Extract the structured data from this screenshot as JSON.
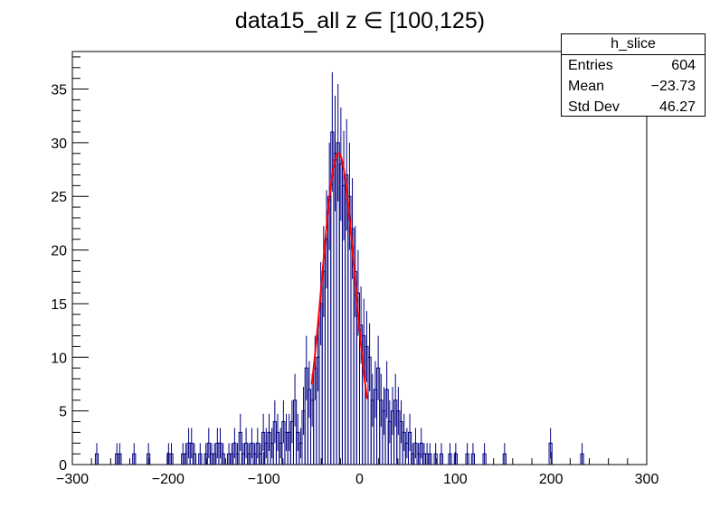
{
  "chart_data": {
    "type": "histogram",
    "title": "data15_all z  ∈ [100,125)",
    "xlabel": "",
    "ylabel": "",
    "xlim": [
      -300,
      300
    ],
    "ylim": [
      0,
      38.5
    ],
    "xticks": [
      -300,
      -200,
      -100,
      0,
      100,
      200,
      300
    ],
    "yticks": [
      0,
      5,
      10,
      15,
      20,
      25,
      30,
      35
    ],
    "bin_width": 3,
    "bins": [
      [
        -276,
        1
      ],
      [
        -255,
        1
      ],
      [
        -252,
        1
      ],
      [
        -237,
        1
      ],
      [
        -222,
        1
      ],
      [
        -201,
        1
      ],
      [
        -198,
        1
      ],
      [
        -186,
        1
      ],
      [
        -183,
        1
      ],
      [
        -180,
        2
      ],
      [
        -177,
        2
      ],
      [
        -174,
        1
      ],
      [
        -168,
        1
      ],
      [
        -162,
        1
      ],
      [
        -159,
        2
      ],
      [
        -156,
        1
      ],
      [
        -153,
        1
      ],
      [
        -150,
        2
      ],
      [
        -147,
        2
      ],
      [
        -144,
        1
      ],
      [
        -138,
        1
      ],
      [
        -135,
        1
      ],
      [
        -132,
        2
      ],
      [
        -129,
        1
      ],
      [
        -126,
        3
      ],
      [
        -123,
        1
      ],
      [
        -120,
        2
      ],
      [
        -117,
        1
      ],
      [
        -114,
        2
      ],
      [
        -111,
        1
      ],
      [
        -108,
        2
      ],
      [
        -105,
        1
      ],
      [
        -102,
        3
      ],
      [
        -99,
        2
      ],
      [
        -96,
        3
      ],
      [
        -93,
        2
      ],
      [
        -90,
        4
      ],
      [
        -87,
        3
      ],
      [
        -84,
        2
      ],
      [
        -81,
        4
      ],
      [
        -78,
        3
      ],
      [
        -75,
        3
      ],
      [
        -72,
        4
      ],
      [
        -69,
        6
      ],
      [
        -66,
        3
      ],
      [
        -63,
        2
      ],
      [
        -60,
        5
      ],
      [
        -57,
        9
      ],
      [
        -54,
        7
      ],
      [
        -51,
        6
      ],
      [
        -48,
        9
      ],
      [
        -45,
        10
      ],
      [
        -42,
        15
      ],
      [
        -39,
        18
      ],
      [
        -36,
        21
      ],
      [
        -33,
        25
      ],
      [
        -30,
        31
      ],
      [
        -27,
        29
      ],
      [
        -24,
        30
      ],
      [
        -21,
        28
      ],
      [
        -18,
        26
      ],
      [
        -15,
        27
      ],
      [
        -12,
        25
      ],
      [
        -9,
        22
      ],
      [
        -6,
        18
      ],
      [
        -3,
        16
      ],
      [
        0,
        13
      ],
      [
        3,
        12
      ],
      [
        6,
        11
      ],
      [
        9,
        10
      ],
      [
        12,
        6
      ],
      [
        15,
        7
      ],
      [
        18,
        9
      ],
      [
        21,
        6
      ],
      [
        24,
        5
      ],
      [
        27,
        7
      ],
      [
        30,
        4
      ],
      [
        33,
        5
      ],
      [
        36,
        6
      ],
      [
        39,
        5
      ],
      [
        42,
        4
      ],
      [
        45,
        3
      ],
      [
        48,
        2
      ],
      [
        51,
        3
      ],
      [
        54,
        1
      ],
      [
        57,
        2
      ],
      [
        60,
        1
      ],
      [
        63,
        2
      ],
      [
        66,
        1
      ],
      [
        69,
        1
      ],
      [
        72,
        1
      ],
      [
        78,
        1
      ],
      [
        84,
        1
      ],
      [
        93,
        1
      ],
      [
        99,
        1
      ],
      [
        111,
        1
      ],
      [
        117,
        1
      ],
      [
        129,
        1
      ],
      [
        150,
        1
      ],
      [
        198,
        2
      ],
      [
        231,
        1
      ]
    ],
    "fit": {
      "name": "gaus",
      "constant": 29,
      "mean": -22,
      "sigma": 17,
      "range": [
        -50,
        8
      ],
      "color": "#ff0000"
    },
    "line_color": "#000080",
    "axis_color": "#000000"
  },
  "stats": {
    "name": "h_slice",
    "rows": [
      {
        "label": "Entries",
        "value": "604"
      },
      {
        "label": "Mean",
        "value": "−23.73"
      },
      {
        "label": "Std Dev",
        "value": "46.27"
      }
    ]
  }
}
